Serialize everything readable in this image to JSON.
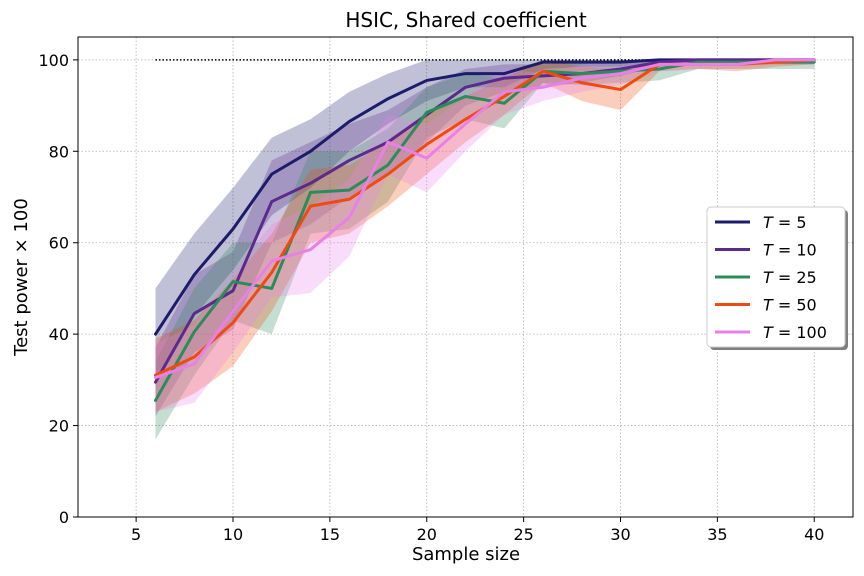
{
  "chart_data": {
    "type": "line",
    "title": "HSIC, Shared coefficient",
    "xlabel": "Sample size",
    "ylabel": "Test power × 100",
    "xlim": [
      2,
      42
    ],
    "ylim": [
      0,
      105
    ],
    "xticks": [
      5,
      10,
      15,
      20,
      25,
      30,
      35,
      40
    ],
    "yticks": [
      0,
      20,
      40,
      60,
      80,
      100
    ],
    "grid": true,
    "legend_position": "center-right",
    "reference_line": {
      "y": 100,
      "x": [
        6,
        40
      ],
      "style": "dotted",
      "color": "#000000"
    },
    "x": [
      6,
      8,
      10,
      12,
      14,
      16,
      18,
      20,
      22,
      24,
      26,
      28,
      30,
      32,
      34,
      36,
      38,
      40
    ],
    "series": [
      {
        "name": "T = 5",
        "var": "T",
        "eq": " = 5",
        "color": "#1c1c6b",
        "values": [
          40,
          53,
          63,
          75,
          80,
          86.5,
          91.5,
          95.5,
          97,
          97,
          99.5,
          99.5,
          99.5,
          100,
          100,
          100,
          100,
          100
        ],
        "lower": [
          30,
          44,
          54,
          66,
          72,
          80,
          86,
          91,
          94,
          94,
          98,
          98.5,
          98.5,
          99.5,
          99.5,
          99.5,
          99.5,
          99.5
        ],
        "upper": [
          50,
          62,
          72,
          83,
          87,
          93,
          97,
          100,
          100,
          100,
          100,
          100,
          100,
          100,
          100,
          100,
          100,
          100
        ]
      },
      {
        "name": "T = 10",
        "var": "T",
        "eq": " = 10",
        "color": "#5b2a8c",
        "values": [
          29.5,
          44.5,
          49.5,
          69,
          73,
          78,
          82,
          88,
          94,
          96,
          96.5,
          97,
          98,
          99.5,
          100,
          100,
          100,
          100
        ],
        "lower": [
          22,
          36,
          41,
          60,
          64,
          70,
          75,
          82,
          90,
          93,
          94,
          95,
          96.5,
          98.5,
          99,
          99,
          99,
          99
        ],
        "upper": [
          37,
          53,
          58,
          78,
          82,
          86,
          89,
          94,
          98,
          99,
          99,
          99.5,
          99.5,
          100,
          100,
          100,
          100,
          100
        ]
      },
      {
        "name": "T = 25",
        "var": "T",
        "eq": " = 25",
        "color": "#2a8c5a",
        "values": [
          25.5,
          40.5,
          51.5,
          50,
          71,
          71.5,
          77,
          88.5,
          92,
          90.5,
          97.5,
          97,
          97.5,
          98,
          99.5,
          99.5,
          99.5,
          99.5
        ],
        "lower": [
          17,
          31,
          43,
          40,
          62,
          63,
          69,
          83,
          87,
          85,
          95,
          94.5,
          95,
          95.5,
          98,
          98,
          98,
          98
        ],
        "upper": [
          34,
          50,
          60,
          60,
          80,
          80,
          85,
          94,
          97,
          96,
          100,
          99.5,
          100,
          100,
          100,
          100,
          100,
          100
        ]
      },
      {
        "name": "T = 50",
        "var": "T",
        "eq": " = 50",
        "color": "#f04a10",
        "values": [
          31,
          35,
          42.5,
          53.5,
          68,
          69.5,
          75,
          81.5,
          87,
          92,
          97.5,
          95,
          93.5,
          99,
          99,
          99,
          99.5,
          100
        ],
        "lower": [
          23,
          27,
          33,
          45,
          60,
          62,
          68,
          75,
          82,
          88,
          95,
          91,
          89,
          97.5,
          98,
          97.5,
          98.5,
          99
        ],
        "upper": [
          39,
          43,
          52,
          62,
          76,
          77,
          82,
          88,
          92,
          96,
          100,
          98.5,
          98,
          100,
          100,
          100,
          100,
          100
        ]
      },
      {
        "name": "T = 100",
        "var": "T",
        "eq": " = 100",
        "color": "#e880e8",
        "values": [
          30.5,
          33.5,
          45,
          56,
          58.5,
          65.5,
          82,
          78.5,
          86,
          93,
          94,
          96,
          97,
          99,
          99,
          99,
          100,
          100
        ],
        "lower": [
          23,
          25,
          36,
          48,
          49,
          57,
          75,
          71,
          80,
          88,
          91,
          93,
          94.5,
          97.5,
          98,
          98,
          99,
          99
        ],
        "upper": [
          38,
          42,
          54,
          64,
          68,
          74,
          88,
          86,
          92,
          98,
          97,
          99,
          99.5,
          100,
          100,
          100,
          100,
          100
        ]
      }
    ]
  }
}
